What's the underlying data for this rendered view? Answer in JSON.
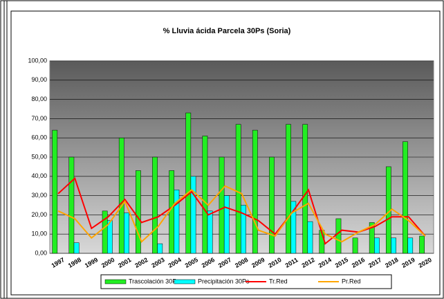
{
  "chart_data": {
    "type": "bar",
    "title": "% Lluvia ácida Parcela 30Ps (Soria)",
    "categories": [
      "1997",
      "1998",
      "1999",
      "2000",
      "2001",
      "2002",
      "2003",
      "2004",
      "2005",
      "2006",
      "2007",
      "2008",
      "2009",
      "2010",
      "2011",
      "2012",
      "2014",
      "2015",
      "2016",
      "2017",
      "2018",
      "2019",
      "2020"
    ],
    "series": [
      {
        "name": "Trascolación  30Ps",
        "type": "bar",
        "color": "#22ee22",
        "values": [
          64,
          50,
          0,
          22,
          60,
          43,
          50,
          43,
          73,
          61,
          50,
          67,
          64,
          50,
          67,
          67,
          12,
          18,
          8,
          16,
          45,
          58,
          9
        ]
      },
      {
        "name": "Precipitación 30Ps",
        "type": "bar",
        "color": "#00ffff",
        "values": [
          0,
          5.5,
          0,
          17,
          21,
          0,
          5,
          33,
          40,
          22,
          30,
          25,
          0,
          0,
          27,
          16.5,
          0,
          0,
          0,
          8,
          8,
          8,
          0
        ]
      },
      {
        "name": "Tr.Red",
        "type": "line",
        "color": "#ff0000",
        "values": [
          31,
          39,
          13,
          19,
          28,
          16,
          19,
          25,
          32,
          20,
          24,
          21,
          17,
          10,
          21,
          33,
          5,
          12,
          11,
          14,
          19,
          19,
          9
        ]
      },
      {
        "name": "Pr.Red",
        "type": "line",
        "color": "#ffa500",
        "values": [
          22,
          18,
          8,
          15,
          27,
          6,
          14,
          26,
          33,
          25,
          35,
          31,
          12,
          9,
          21,
          26,
          10,
          6,
          11,
          15,
          23,
          17,
          9
        ]
      }
    ],
    "ylim": [
      0,
      100
    ],
    "yticks": [
      {
        "value": 0,
        "label": "0,00"
      },
      {
        "value": 10,
        "label": "10,00"
      },
      {
        "value": 20,
        "label": "20,00"
      },
      {
        "value": 30,
        "label": "30,00"
      },
      {
        "value": 40,
        "label": "40,00"
      },
      {
        "value": 50,
        "label": "50,00"
      },
      {
        "value": 60,
        "label": "60,00"
      },
      {
        "value": 70,
        "label": "70,00"
      },
      {
        "value": 80,
        "label": "80,00"
      },
      {
        "value": 90,
        "label": "90,00"
      },
      {
        "value": 100,
        "label": "100,00"
      }
    ],
    "grid": true
  }
}
